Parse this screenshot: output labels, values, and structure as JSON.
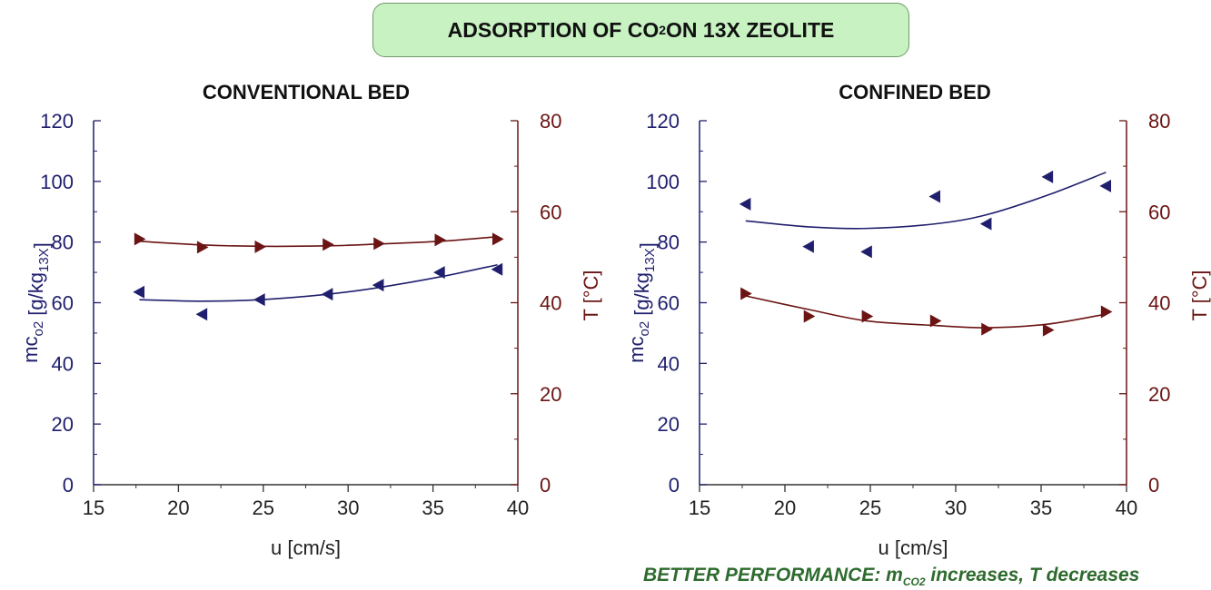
{
  "banner": {
    "title_prefix": "ADSORPTION OF CO",
    "title_sub": "2",
    "title_suffix": " ON 13X ZEOLITE"
  },
  "note": {
    "prefix": "BETTER PERFORMANCE: m",
    "sub": "CO2",
    "suffix": " increases, T decreases"
  },
  "colors": {
    "m_series": "#1f1f6e",
    "t_series": "#6b1414",
    "note": "#2e6b2e",
    "banner_bg": "#c9f2c3"
  },
  "chart_data": [
    {
      "type": "scatter",
      "title": "CONVENTIONAL BED",
      "xlabel": "u [cm/s]",
      "ylabel_left": "mco2 [g/kg13X]",
      "ylabel_right": "T [°C]",
      "xlim": [
        15,
        40
      ],
      "ylim_left": [
        0,
        120
      ],
      "ylim_right": [
        0,
        80
      ],
      "x_ticks": [
        15,
        20,
        25,
        30,
        35,
        40
      ],
      "y_left_ticks": [
        0,
        20,
        40,
        60,
        80,
        100,
        120
      ],
      "y_right_ticks": [
        0,
        20,
        40,
        60,
        80
      ],
      "grid": false,
      "series": [
        {
          "axis": "left",
          "marker": "triangle-left",
          "x": [
            17.7,
            21.4,
            24.8,
            28.8,
            31.8,
            35.4,
            38.8
          ],
          "y": [
            63.5,
            56.2,
            61.0,
            62.8,
            65.8,
            70.0,
            71.0
          ],
          "fit_y": [
            61.0,
            60.5,
            61.0,
            62.8,
            65.0,
            68.5,
            72.5
          ]
        },
        {
          "axis": "right",
          "marker": "triangle-right",
          "x": [
            17.7,
            21.4,
            24.8,
            28.8,
            31.8,
            35.4,
            38.8
          ],
          "y": [
            54.0,
            52.2,
            52.3,
            52.8,
            53.0,
            53.8,
            54.0
          ],
          "fit_y": [
            53.5,
            52.7,
            52.4,
            52.5,
            52.9,
            53.5,
            54.5
          ]
        }
      ]
    },
    {
      "type": "scatter",
      "title": "CONFINED BED",
      "xlabel": "u [cm/s]",
      "ylabel_left": "mco2 [g/kg13X]",
      "ylabel_right": "T [°C]",
      "xlim": [
        15,
        40
      ],
      "ylim_left": [
        0,
        120
      ],
      "ylim_right": [
        0,
        80
      ],
      "x_ticks": [
        15,
        20,
        25,
        30,
        35,
        40
      ],
      "y_left_ticks": [
        0,
        20,
        40,
        60,
        80,
        100,
        120
      ],
      "y_right_ticks": [
        0,
        20,
        40,
        60,
        80
      ],
      "grid": false,
      "series": [
        {
          "axis": "left",
          "marker": "triangle-left",
          "x": [
            17.7,
            21.4,
            24.8,
            28.8,
            31.8,
            35.4,
            38.8
          ],
          "y": [
            92.5,
            78.5,
            76.8,
            95.0,
            86.0,
            101.5,
            98.5
          ],
          "fit_y": [
            87.0,
            85.0,
            84.5,
            86.0,
            89.0,
            95.5,
            103.0
          ]
        },
        {
          "axis": "right",
          "marker": "triangle-right",
          "x": [
            17.7,
            21.4,
            24.8,
            28.8,
            31.8,
            35.4,
            38.8
          ],
          "y": [
            42.0,
            37.0,
            37.0,
            36.0,
            34.2,
            34.0,
            38.0
          ],
          "fit_y": [
            41.5,
            38.5,
            36.0,
            35.0,
            34.5,
            35.3,
            37.5
          ]
        }
      ]
    }
  ]
}
